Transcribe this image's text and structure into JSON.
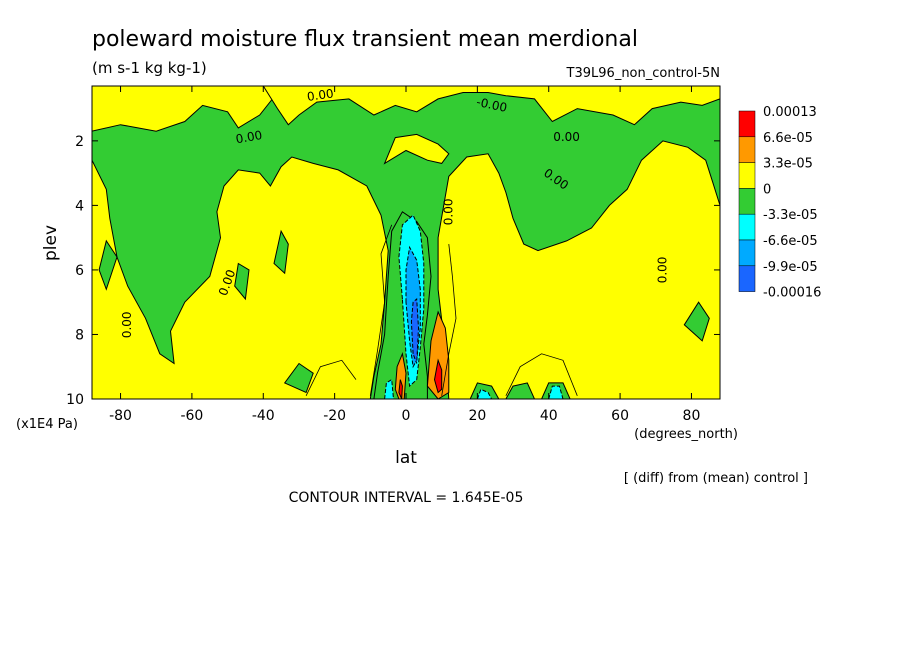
{
  "title": "poleward moisture flux transient mean merdional",
  "units": "(m s-1 kg kg-1)",
  "run_label": "T39L96_non_control-5N",
  "footer_diff": "[ (diff) from (mean) control ]",
  "contour_interval": "CONTOUR INTERVAL = 1.645E-05",
  "colors": {
    "red": "#ff0000",
    "orange": "#ff9900",
    "yellow": "#ffff00",
    "green": "#33cc33",
    "cyan": "#00ffff",
    "sky": "#00aaff",
    "blue": "#1a66ff",
    "darkblue": "#2233ee"
  },
  "chart_data": {
    "type": "contour",
    "title": "poleward moisture flux transient mean merdional",
    "xlabel": "lat",
    "xunit": "(degrees_north)",
    "ylabel": "plev",
    "yunit": "(x1E4 Pa)",
    "xlim": [
      -88,
      88
    ],
    "ylim": [
      10,
      0.3
    ],
    "xticks": [
      -80,
      -60,
      -40,
      -20,
      0,
      20,
      40,
      60,
      80
    ],
    "yticks": [
      2,
      4,
      6,
      8,
      10
    ],
    "contour_labels": [
      {
        "text": "0.00",
        "lat": -78,
        "plev": 7.7,
        "rot": -90
      },
      {
        "text": "0.00",
        "lat": -50,
        "plev": 6.4,
        "rot": -70
      },
      {
        "text": "0.00",
        "lat": -44,
        "plev": 1.9,
        "rot": -10
      },
      {
        "text": "0.00",
        "lat": -24,
        "plev": 0.6,
        "rot": -8
      },
      {
        "text": "0.00",
        "lat": 12,
        "plev": 4.2,
        "rot": -90
      },
      {
        "text": "-0.00",
        "lat": 24,
        "plev": 0.9,
        "rot": 12
      },
      {
        "text": "0.00",
        "lat": 45,
        "plev": 1.9,
        "rot": 0
      },
      {
        "text": "0.00",
        "lat": 42,
        "plev": 3.2,
        "rot": 35
      },
      {
        "text": "0.00",
        "lat": 72,
        "plev": 6.0,
        "rot": -90
      }
    ],
    "legend": {
      "labels": [
        "0.00013",
        "6.6e-05",
        "3.3e-05",
        "0",
        "-3.3e-05",
        "-6.6e-05",
        "-9.9e-05",
        "-0.00016"
      ],
      "fills": [
        "red",
        "orange",
        "yellow",
        "green",
        "cyan",
        "sky",
        "blue"
      ]
    },
    "regions": [
      {
        "fill": "yellow",
        "pts": [
          [
            -88,
            1.7
          ],
          [
            -80,
            1.5
          ],
          [
            -70,
            1.7
          ],
          [
            -62,
            1.4
          ],
          [
            -57,
            0.9
          ],
          [
            -50,
            1.1
          ],
          [
            -47,
            1.6
          ],
          [
            -41,
            1.2
          ],
          [
            -36,
            0.5
          ],
          [
            -31,
            0.3
          ],
          [
            -88,
            0.3
          ]
        ]
      },
      {
        "fill": "yellow",
        "pts": [
          [
            -40,
            0.3
          ],
          [
            -36,
            1.0
          ],
          [
            -33,
            1.5
          ],
          [
            -30,
            1.2
          ],
          [
            -25,
            0.8
          ],
          [
            -16,
            0.7
          ],
          [
            -9,
            1.2
          ],
          [
            -3,
            0.9
          ],
          [
            3,
            1.1
          ],
          [
            9,
            0.7
          ],
          [
            16,
            0.5
          ],
          [
            23,
            0.5
          ],
          [
            28,
            0.6
          ],
          [
            36,
            0.7
          ],
          [
            41,
            1.4
          ],
          [
            48,
            1.0
          ],
          [
            58,
            1.2
          ],
          [
            64,
            1.5
          ],
          [
            69,
            1.0
          ],
          [
            77,
            0.8
          ],
          [
            83,
            0.9
          ],
          [
            88,
            0.7
          ],
          [
            88,
            0.3
          ]
        ]
      },
      {
        "fill": "yellow",
        "pts": [
          [
            -6,
            2.7
          ],
          [
            0,
            2.3
          ],
          [
            6,
            2.6
          ],
          [
            10,
            2.7
          ],
          [
            12,
            2.4
          ],
          [
            9,
            2.1
          ],
          [
            3,
            1.8
          ],
          [
            -3,
            1.9
          ]
        ]
      },
      {
        "fill": "yellow",
        "pts": [
          [
            -88,
            2.6
          ],
          [
            -84,
            3.5
          ],
          [
            -83,
            4.4
          ],
          [
            -81,
            5.6
          ],
          [
            -78,
            6.5
          ],
          [
            -73,
            7.5
          ],
          [
            -69,
            8.6
          ],
          [
            -65,
            8.9
          ],
          [
            -66,
            7.9
          ],
          [
            -62,
            7.0
          ],
          [
            -55,
            6.2
          ],
          [
            -52,
            5.0
          ],
          [
            -53,
            4.2
          ],
          [
            -51,
            3.4
          ],
          [
            -47,
            2.9
          ],
          [
            -41,
            3.0
          ],
          [
            -38,
            3.4
          ],
          [
            -35,
            2.8
          ],
          [
            -32,
            2.5
          ],
          [
            -26,
            2.7
          ],
          [
            -19,
            2.9
          ],
          [
            -11,
            3.4
          ],
          [
            -7,
            4.3
          ],
          [
            -5,
            5.4
          ],
          [
            -6,
            7.0
          ],
          [
            -7,
            8.3
          ],
          [
            -9,
            9.3
          ],
          [
            -10,
            10
          ],
          [
            -88,
            10
          ]
        ]
      },
      {
        "fill": "yellow",
        "pts": [
          [
            12,
            10
          ],
          [
            11,
            8.5
          ],
          [
            9,
            6.6
          ],
          [
            9,
            5.0
          ],
          [
            12,
            3.1
          ],
          [
            17,
            2.5
          ],
          [
            23,
            2.4
          ],
          [
            26,
            3.0
          ],
          [
            28,
            3.6
          ],
          [
            30,
            4.4
          ],
          [
            33,
            5.2
          ],
          [
            37,
            5.4
          ],
          [
            45,
            5.1
          ],
          [
            52,
            4.7
          ],
          [
            57,
            4.0
          ],
          [
            62,
            3.5
          ],
          [
            66,
            2.6
          ],
          [
            72,
            2.0
          ],
          [
            79,
            2.2
          ],
          [
            84,
            2.6
          ],
          [
            86,
            3.3
          ],
          [
            88,
            4.0
          ],
          [
            88,
            10
          ]
        ]
      },
      {
        "fill": "green",
        "pts": [
          [
            -86,
            6.0
          ],
          [
            -84,
            5.1
          ],
          [
            -81,
            5.6
          ],
          [
            -84,
            6.6
          ]
        ]
      },
      {
        "fill": "green",
        "pts": [
          [
            -48,
            6.5
          ],
          [
            -47,
            5.8
          ],
          [
            -44,
            6.0
          ],
          [
            -45,
            6.9
          ]
        ]
      },
      {
        "fill": "green",
        "pts": [
          [
            -37,
            5.8
          ],
          [
            -35,
            4.8
          ],
          [
            -33,
            5.2
          ],
          [
            -34,
            6.1
          ]
        ]
      },
      {
        "fill": "green",
        "pts": [
          [
            -34,
            9.5
          ],
          [
            -30,
            8.9
          ],
          [
            -26,
            9.2
          ],
          [
            -28,
            9.8
          ]
        ]
      },
      {
        "fill": "green",
        "pts": [
          [
            78,
            7.7
          ],
          [
            82,
            7.0
          ],
          [
            85,
            7.5
          ],
          [
            83,
            8.2
          ]
        ]
      },
      {
        "fill": "green",
        "pts": [
          [
            18,
            10
          ],
          [
            20,
            9.5
          ],
          [
            24,
            9.6
          ],
          [
            26,
            10
          ]
        ]
      },
      {
        "fill": "green",
        "pts": [
          [
            28,
            10
          ],
          [
            30,
            9.6
          ],
          [
            34,
            9.5
          ],
          [
            36,
            10
          ]
        ]
      },
      {
        "fill": "green",
        "pts": [
          [
            38,
            10
          ],
          [
            40,
            9.5
          ],
          [
            44,
            9.5
          ],
          [
            46,
            10
          ]
        ]
      },
      {
        "fill": "green",
        "pts": [
          [
            -9,
            10
          ],
          [
            -8,
            9.2
          ],
          [
            -6,
            8.0
          ],
          [
            -5,
            6.2
          ],
          [
            -4,
            4.8
          ],
          [
            -1,
            4.2
          ],
          [
            3,
            4.5
          ],
          [
            6,
            5.0
          ],
          [
            7,
            6.2
          ],
          [
            6,
            7.4
          ],
          [
            5,
            8.3
          ],
          [
            6,
            9.3
          ],
          [
            6,
            10
          ]
        ]
      },
      {
        "fill": "cyan",
        "pts": [
          [
            -1,
            6.9
          ],
          [
            -2,
            5.6
          ],
          [
            -1,
            4.6
          ],
          [
            2,
            4.3
          ],
          [
            4,
            4.8
          ],
          [
            5,
            5.8
          ],
          [
            5,
            7.2
          ],
          [
            4,
            8.4
          ],
          [
            3,
            9.4
          ],
          [
            1,
            9.6
          ],
          [
            0,
            8.6
          ]
        ]
      },
      {
        "fill": "sky",
        "pts": [
          [
            0,
            7.0
          ],
          [
            0,
            6.0
          ],
          [
            1,
            5.3
          ],
          [
            3,
            5.7
          ],
          [
            4,
            6.6
          ],
          [
            4,
            7.8
          ],
          [
            3,
            8.8
          ],
          [
            2,
            9.0
          ],
          [
            1,
            8.2
          ]
        ]
      },
      {
        "fill": "blue",
        "pts": [
          [
            2,
            8.6
          ],
          [
            1.5,
            7.6
          ],
          [
            2,
            7.0
          ],
          [
            3,
            6.9
          ],
          [
            3.5,
            7.8
          ],
          [
            3,
            8.9
          ]
        ]
      },
      {
        "fill": "cyan",
        "pts": [
          [
            20,
            10
          ],
          [
            21,
            9.7
          ],
          [
            23,
            9.8
          ],
          [
            24,
            10
          ]
        ]
      },
      {
        "fill": "cyan",
        "pts": [
          [
            40,
            10
          ],
          [
            41,
            9.6
          ],
          [
            43,
            9.6
          ],
          [
            44,
            10
          ]
        ]
      },
      {
        "fill": "cyan",
        "pts": [
          [
            -6,
            10
          ],
          [
            -5.5,
            9.5
          ],
          [
            -4,
            9.4
          ],
          [
            -3.5,
            10
          ]
        ]
      },
      {
        "fill": "orange",
        "pts": [
          [
            -3,
            9.7
          ],
          [
            -2.5,
            9.0
          ],
          [
            -1,
            8.6
          ],
          [
            0,
            9.2
          ],
          [
            -0.5,
            10
          ],
          [
            -2,
            10
          ]
        ]
      },
      {
        "fill": "orange",
        "pts": [
          [
            6,
            9.6
          ],
          [
            7,
            8.2
          ],
          [
            9,
            7.3
          ],
          [
            11,
            7.8
          ],
          [
            12,
            8.8
          ],
          [
            12,
            9.8
          ],
          [
            9,
            10
          ]
        ]
      },
      {
        "fill": "red",
        "pts": [
          [
            8,
            9.4
          ],
          [
            9,
            8.8
          ],
          [
            10,
            9.1
          ],
          [
            10,
            9.7
          ],
          [
            9,
            9.8
          ]
        ]
      },
      {
        "fill": "red",
        "pts": [
          [
            -2,
            9.8
          ],
          [
            -1.6,
            9.4
          ],
          [
            -1,
            9.6
          ],
          [
            -1.2,
            10
          ]
        ]
      }
    ]
  }
}
